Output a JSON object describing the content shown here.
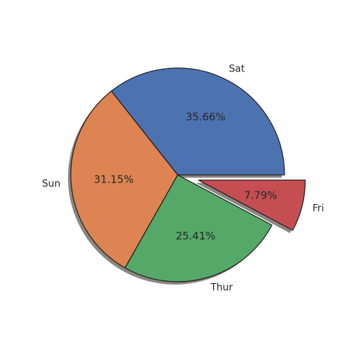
{
  "chart_data": {
    "type": "pie",
    "title": "",
    "slices": [
      {
        "label": "Sat",
        "value": 35.66,
        "pct_label": "35.66%",
        "color": "#4c72b0",
        "exploded": false
      },
      {
        "label": "Sun",
        "value": 31.15,
        "pct_label": "31.15%",
        "color": "#dd8452",
        "exploded": false
      },
      {
        "label": "Thur",
        "value": 25.41,
        "pct_label": "25.41%",
        "color": "#55a868",
        "exploded": false
      },
      {
        "label": "Fri",
        "value": 7.79,
        "pct_label": "7.79%",
        "color": "#c44e52",
        "exploded": true
      }
    ],
    "start_angle_deg": 0,
    "direction": "counterclockwise",
    "shadow": true,
    "edge_color": "#1a1a1a",
    "shadow_color": "#8c8680"
  }
}
